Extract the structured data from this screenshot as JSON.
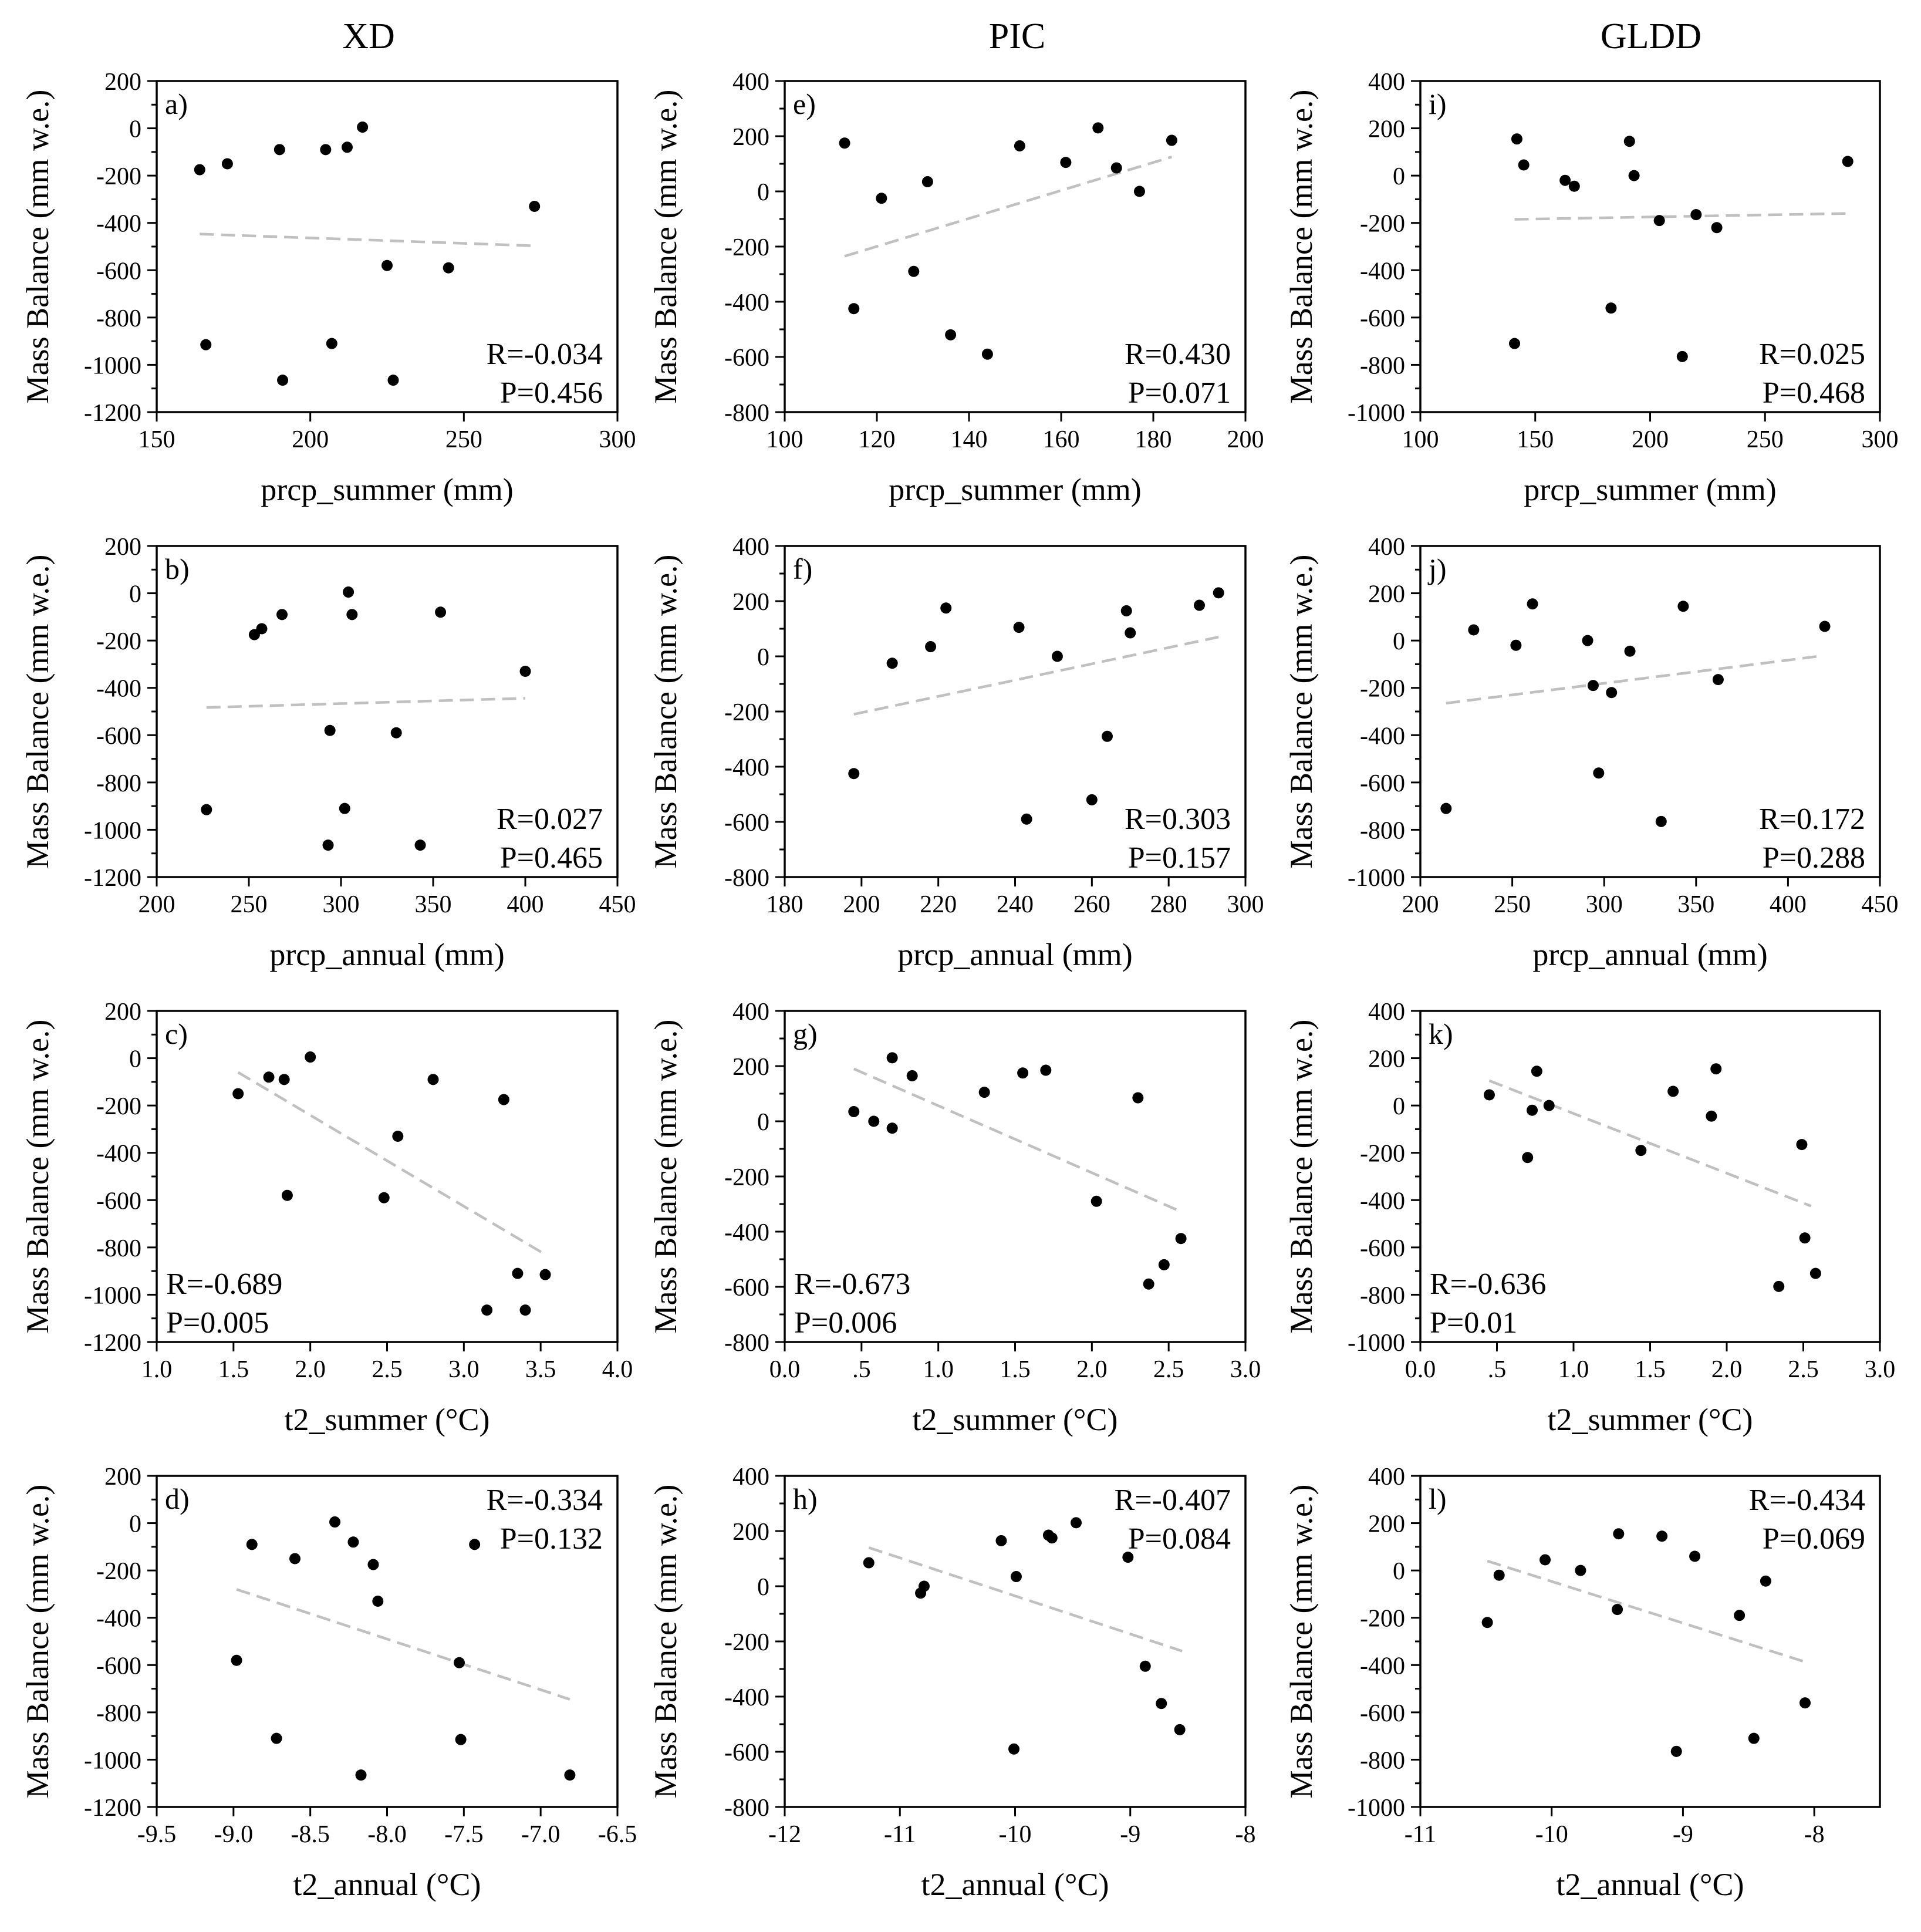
{
  "columns": [
    "XD",
    "PIC",
    "GLDD"
  ],
  "chart_data": [
    {
      "panel": "a)",
      "type": "scatter",
      "column": "XD",
      "xlabel": "prcp_summer (mm)",
      "ylabel": "Mass Balance (mm w.e.)",
      "xlim": [
        150,
        300
      ],
      "ylim": [
        -1200,
        200
      ],
      "xticks": [
        150,
        200,
        250,
        300
      ],
      "xtick_labels": [
        "150",
        "200",
        "250",
        "300"
      ],
      "yticks": [
        -1200,
        -1000,
        -800,
        -600,
        -400,
        -200,
        0,
        200
      ],
      "ytick_labels": [
        "-1200",
        "-1000",
        "-800",
        "-600",
        "-400",
        "-200",
        "0",
        "200"
      ],
      "x": [
        164,
        166,
        173,
        190,
        191,
        205,
        207,
        212,
        217,
        225,
        227,
        245,
        273
      ],
      "y": [
        -175,
        -915,
        -150,
        -90,
        -1065,
        -90,
        -910,
        -80,
        5,
        -580,
        -1065,
        -590,
        -330
      ],
      "trend": {
        "x": [
          164,
          273
        ],
        "y": [
          -447,
          -497
        ]
      },
      "stats": {
        "R": "R=-0.034",
        "P": "P=0.456"
      },
      "stats_position": "bottom-right"
    },
    {
      "panel": "b)",
      "type": "scatter",
      "column": "XD",
      "xlabel": "prcp_annual (mm)",
      "ylabel": "Mass Balance (mm w.e.)",
      "xlim": [
        200,
        450
      ],
      "ylim": [
        -1200,
        200
      ],
      "xticks": [
        200,
        250,
        300,
        350,
        400,
        450
      ],
      "xtick_labels": [
        "200",
        "250",
        "300",
        "350",
        "400",
        "450"
      ],
      "yticks": [
        -1200,
        -1000,
        -800,
        -600,
        -400,
        -200,
        0,
        200
      ],
      "ytick_labels": [
        "-1200",
        "-1000",
        "-800",
        "-600",
        "-400",
        "-200",
        "0",
        "200"
      ],
      "x": [
        227,
        253,
        257,
        268,
        293,
        294,
        302,
        304,
        306,
        330,
        354,
        343,
        400
      ],
      "y": [
        -915,
        -175,
        -150,
        -90,
        -1065,
        -580,
        -910,
        5,
        -90,
        -590,
        -80,
        -1065,
        -330
      ],
      "trend": {
        "x": [
          227,
          400
        ],
        "y": [
          -483,
          -444
        ]
      },
      "stats": {
        "R": "R=0.027",
        "P": "P=0.465"
      },
      "stats_position": "bottom-right"
    },
    {
      "panel": "c)",
      "type": "scatter",
      "column": "XD",
      "xlabel": "t2_summer (°C)",
      "ylabel": "Mass Balance (mm w.e.)",
      "xlim": [
        1.0,
        4.0
      ],
      "ylim": [
        -1200,
        200
      ],
      "xticks": [
        1.0,
        1.5,
        2.0,
        2.5,
        3.0,
        3.5,
        4.0
      ],
      "xtick_labels": [
        "1.0",
        "1.5",
        "2.0",
        "2.5",
        "3.0",
        "3.5",
        "4.0"
      ],
      "yticks": [
        -1200,
        -1000,
        -800,
        -600,
        -400,
        -200,
        0,
        200
      ],
      "ytick_labels": [
        "-1200",
        "-1000",
        "-800",
        "-600",
        "-400",
        "-200",
        "0",
        "200"
      ],
      "x": [
        1.53,
        1.73,
        1.83,
        1.85,
        2.0,
        2.48,
        2.57,
        2.8,
        3.26,
        3.15,
        3.35,
        3.4,
        3.53
      ],
      "y": [
        -150,
        -80,
        -90,
        -580,
        5,
        -590,
        -330,
        -90,
        -175,
        -1065,
        -910,
        -1065,
        -915
      ],
      "trend": {
        "x": [
          1.53,
          3.53
        ],
        "y": [
          -60,
          -830
        ]
      },
      "stats": {
        "R": "R=-0.689",
        "P": "P=0.005"
      },
      "stats_position": "bottom-left"
    },
    {
      "panel": "d)",
      "type": "scatter",
      "column": "XD",
      "xlabel": "t2_annual (°C)",
      "ylabel": "Mass Balance (mm w.e.)",
      "xlim": [
        -9.5,
        -6.5
      ],
      "ylim": [
        -1200,
        200
      ],
      "xticks": [
        -9.5,
        -9.0,
        -8.5,
        -8.0,
        -7.5,
        -7.0,
        -6.5
      ],
      "xtick_labels": [
        "-9.5",
        "-9.0",
        "-8.5",
        "-8.0",
        "-7.5",
        "-7.0",
        "-6.5"
      ],
      "yticks": [
        -1200,
        -1000,
        -800,
        -600,
        -400,
        -200,
        0,
        200
      ],
      "ytick_labels": [
        "-1200",
        "-1000",
        "-800",
        "-600",
        "-400",
        "-200",
        "0",
        "200"
      ],
      "x": [
        -8.98,
        -8.88,
        -8.72,
        -8.6,
        -8.34,
        -8.22,
        -8.17,
        -8.09,
        -8.06,
        -7.53,
        -7.52,
        -7.43,
        -6.81
      ],
      "y": [
        -580,
        -90,
        -910,
        -150,
        5,
        -80,
        -1065,
        -175,
        -330,
        -590,
        -915,
        -90,
        -1065
      ],
      "trend": {
        "x": [
          -8.98,
          -6.81
        ],
        "y": [
          -280,
          -745
        ]
      },
      "stats": {
        "R": "R=-0.334",
        "P": "P=0.132"
      },
      "stats_position": "top-right"
    },
    {
      "panel": "e)",
      "type": "scatter",
      "column": "PIC",
      "xlabel": "prcp_summer (mm)",
      "ylabel": "Mass Balance (mm w.e.)",
      "xlim": [
        100,
        200
      ],
      "ylim": [
        -800,
        400
      ],
      "xticks": [
        100,
        120,
        140,
        160,
        180,
        200
      ],
      "xtick_labels": [
        "100",
        "120",
        "140",
        "160",
        "180",
        "200"
      ],
      "yticks": [
        -800,
        -600,
        -400,
        -200,
        0,
        200,
        400
      ],
      "ytick_labels": [
        "-800",
        "-600",
        "-400",
        "-200",
        "0",
        "200",
        "400"
      ],
      "x": [
        113,
        115,
        121,
        128,
        131,
        136,
        144,
        151,
        161,
        168,
        172,
        177,
        184
      ],
      "y": [
        175,
        -425,
        -25,
        -290,
        35,
        -520,
        -590,
        165,
        105,
        230,
        85,
        0,
        185
      ],
      "trend": {
        "x": [
          113,
          184
        ],
        "y": [
          -235,
          125
        ]
      },
      "stats": {
        "R": "R=0.430",
        "P": "P=0.071"
      },
      "stats_position": "bottom-right"
    },
    {
      "panel": "f)",
      "type": "scatter",
      "column": "PIC",
      "xlabel": "prcp_annual (mm)",
      "ylabel": "Mass Balance (mm w.e.)",
      "xlim": [
        180,
        300
      ],
      "ylim": [
        -800,
        400
      ],
      "xticks": [
        180,
        200,
        220,
        240,
        260,
        280,
        300
      ],
      "xtick_labels": [
        "180",
        "200",
        "220",
        "240",
        "260",
        "280",
        "300"
      ],
      "yticks": [
        -800,
        -600,
        -400,
        -200,
        0,
        200,
        400
      ],
      "ytick_labels": [
        "-800",
        "-600",
        "-400",
        "-200",
        "0",
        "200",
        "400"
      ],
      "x": [
        198,
        208,
        218,
        222,
        241,
        243,
        251,
        260,
        264,
        269,
        270,
        288,
        293
      ],
      "y": [
        -425,
        -25,
        35,
        175,
        105,
        -590,
        0,
        -520,
        -290,
        165,
        85,
        185,
        230
      ],
      "trend": {
        "x": [
          198,
          293
        ],
        "y": [
          -210,
          70
        ]
      },
      "stats": {
        "R": "R=0.303",
        "P": "P=0.157"
      },
      "stats_position": "bottom-right"
    },
    {
      "panel": "g)",
      "type": "scatter",
      "column": "PIC",
      "xlabel": "t2_summer (°C)",
      "ylabel": "Mass Balance (mm w.e.)",
      "xlim": [
        0.0,
        3.0
      ],
      "ylim": [
        -800,
        400
      ],
      "xticks": [
        0.0,
        0.5,
        1.0,
        1.5,
        2.0,
        2.5,
        3.0
      ],
      "xtick_labels": [
        "0.0",
        ".5",
        "1.0",
        "1.5",
        "2.0",
        "2.5",
        "3.0"
      ],
      "yticks": [
        -800,
        -600,
        -400,
        -200,
        0,
        200,
        400
      ],
      "ytick_labels": [
        "-800",
        "-600",
        "-400",
        "-200",
        "0",
        "200",
        "400"
      ],
      "x": [
        0.45,
        0.58,
        0.7,
        0.7,
        0.83,
        1.3,
        1.55,
        1.7,
        2.03,
        2.3,
        2.37,
        2.47,
        2.58
      ],
      "y": [
        35,
        0,
        -25,
        230,
        165,
        105,
        175,
        185,
        -290,
        85,
        -590,
        -520,
        -425
      ],
      "trend": {
        "x": [
          0.45,
          2.55
        ],
        "y": [
          190,
          -320
        ]
      },
      "stats": {
        "R": "R=-0.673",
        "P": "P=0.006"
      },
      "stats_position": "bottom-left"
    },
    {
      "panel": "h)",
      "type": "scatter",
      "column": "PIC",
      "xlabel": "t2_annual (°C)",
      "ylabel": "Mass Balance (mm w.e.)",
      "xlim": [
        -12,
        -8
      ],
      "ylim": [
        -800,
        400
      ],
      "xticks": [
        -12,
        -11,
        -10,
        -9,
        -8
      ],
      "xtick_labels": [
        "-12",
        "-11",
        "-10",
        "-9",
        "-8"
      ],
      "yticks": [
        -800,
        -600,
        -400,
        -200,
        0,
        200,
        400
      ],
      "ytick_labels": [
        "-800",
        "-600",
        "-400",
        "-200",
        "0",
        "200",
        "400"
      ],
      "x": [
        -11.27,
        -10.82,
        -10.79,
        -10.12,
        -10.01,
        -9.99,
        -9.71,
        -9.68,
        -9.47,
        -9.02,
        -8.87,
        -8.73,
        -8.57
      ],
      "y": [
        85,
        -25,
        0,
        165,
        -590,
        35,
        185,
        175,
        230,
        105,
        -290,
        -425,
        -520
      ],
      "trend": {
        "x": [
          -11.27,
          -8.55
        ],
        "y": [
          140,
          -235
        ]
      },
      "stats": {
        "R": "R=-0.407",
        "P": "P=0.084"
      },
      "stats_position": "top-right"
    },
    {
      "panel": "i)",
      "type": "scatter",
      "column": "GLDD",
      "xlabel": "prcp_summer (mm)",
      "ylabel": "Mass Balance (mm w.e.)",
      "xlim": [
        100,
        300
      ],
      "ylim": [
        -1000,
        400
      ],
      "xticks": [
        100,
        150,
        200,
        250,
        300
      ],
      "xtick_labels": [
        "100",
        "150",
        "200",
        "250",
        "300"
      ],
      "yticks": [
        -1000,
        -800,
        -600,
        -400,
        -200,
        0,
        200,
        400
      ],
      "ytick_labels": [
        "-1000",
        "-800",
        "-600",
        "-400",
        "-200",
        "0",
        "200",
        "400"
      ],
      "x": [
        141,
        142,
        145,
        163,
        167,
        183,
        191,
        193,
        204,
        214,
        220,
        229,
        286
      ],
      "y": [
        -710,
        155,
        45,
        -20,
        -45,
        -560,
        145,
        0,
        -190,
        -765,
        -165,
        -220,
        60
      ],
      "trend": {
        "x": [
          141,
          286
        ],
        "y": [
          -185,
          -160
        ]
      },
      "stats": {
        "R": "R=0.025",
        "P": "P=0.468"
      },
      "stats_position": "bottom-right"
    },
    {
      "panel": "j)",
      "type": "scatter",
      "column": "GLDD",
      "xlabel": "prcp_annual (mm)",
      "ylabel": "Mass Balance (mm w.e.)",
      "xlim": [
        200,
        450
      ],
      "ylim": [
        -1000,
        400
      ],
      "xticks": [
        200,
        250,
        300,
        350,
        400,
        450
      ],
      "xtick_labels": [
        "200",
        "250",
        "300",
        "350",
        "400",
        "450"
      ],
      "yticks": [
        -1000,
        -800,
        -600,
        -400,
        -200,
        0,
        200,
        400
      ],
      "ytick_labels": [
        "-1000",
        "-800",
        "-600",
        "-400",
        "-200",
        "0",
        "200",
        "400"
      ],
      "x": [
        214,
        229,
        252,
        261,
        291,
        294,
        297,
        304,
        314,
        331,
        343,
        362,
        420
      ],
      "y": [
        -710,
        45,
        -20,
        155,
        0,
        -190,
        -560,
        -220,
        -45,
        -765,
        145,
        -165,
        60
      ],
      "trend": {
        "x": [
          214,
          418
        ],
        "y": [
          -265,
          -65
        ]
      },
      "stats": {
        "R": "R=0.172",
        "P": "P=0.288"
      },
      "stats_position": "bottom-right"
    },
    {
      "panel": "k)",
      "type": "scatter",
      "column": "GLDD",
      "xlabel": "t2_summer (°C)",
      "ylabel": "Mass Balance (mm w.e.)",
      "xlim": [
        0.0,
        3.0
      ],
      "ylim": [
        -1000,
        400
      ],
      "xticks": [
        0.0,
        0.5,
        1.0,
        1.5,
        2.0,
        2.5,
        3.0
      ],
      "xtick_labels": [
        "0.0",
        ".5",
        "1.0",
        "1.5",
        "2.0",
        "2.5",
        "3.0"
      ],
      "yticks": [
        -1000,
        -800,
        -600,
        -400,
        -200,
        0,
        200,
        400
      ],
      "ytick_labels": [
        "-1000",
        "-800",
        "-600",
        "-400",
        "-200",
        "0",
        "200",
        "400"
      ],
      "x": [
        0.45,
        0.7,
        0.73,
        0.76,
        0.84,
        1.44,
        1.65,
        1.9,
        1.93,
        2.34,
        2.49,
        2.51,
        2.58
      ],
      "y": [
        45,
        -220,
        -20,
        145,
        0,
        -190,
        60,
        -45,
        155,
        -765,
        -165,
        -560,
        -710
      ],
      "trend": {
        "x": [
          0.45,
          2.55
        ],
        "y": [
          105,
          -425
        ]
      },
      "stats": {
        "R": "R=-0.636",
        "P": "P=0.01"
      },
      "stats_position": "bottom-left"
    },
    {
      "panel": "l)",
      "type": "scatter",
      "column": "GLDD",
      "xlabel": "t2_annual (°C)",
      "ylabel": "Mass Balance (mm w.e.)",
      "xlim": [
        -11,
        -7.5
      ],
      "ylim": [
        -1000,
        400
      ],
      "xticks": [
        -11,
        -10,
        -9,
        -8
      ],
      "xtick_labels": [
        "-11",
        "-10",
        "-9",
        "-8"
      ],
      "yticks": [
        -1000,
        -800,
        -600,
        -400,
        -200,
        0,
        200,
        400
      ],
      "ytick_labels": [
        "-1000",
        "-800",
        "-600",
        "-400",
        "-200",
        "0",
        "200",
        "400"
      ],
      "x": [
        -10.49,
        -10.4,
        -10.05,
        -9.78,
        -9.5,
        -9.49,
        -9.16,
        -9.05,
        -8.91,
        -8.57,
        -8.46,
        -8.37,
        -8.07
      ],
      "y": [
        -220,
        -20,
        45,
        0,
        -165,
        155,
        145,
        -765,
        60,
        -190,
        -710,
        -45,
        -560
      ],
      "trend": {
        "x": [
          -10.49,
          -8.05
        ],
        "y": [
          40,
          -390
        ]
      },
      "stats": {
        "R": "R=-0.434",
        "P": "P=0.069"
      },
      "stats_position": "top-right"
    }
  ]
}
